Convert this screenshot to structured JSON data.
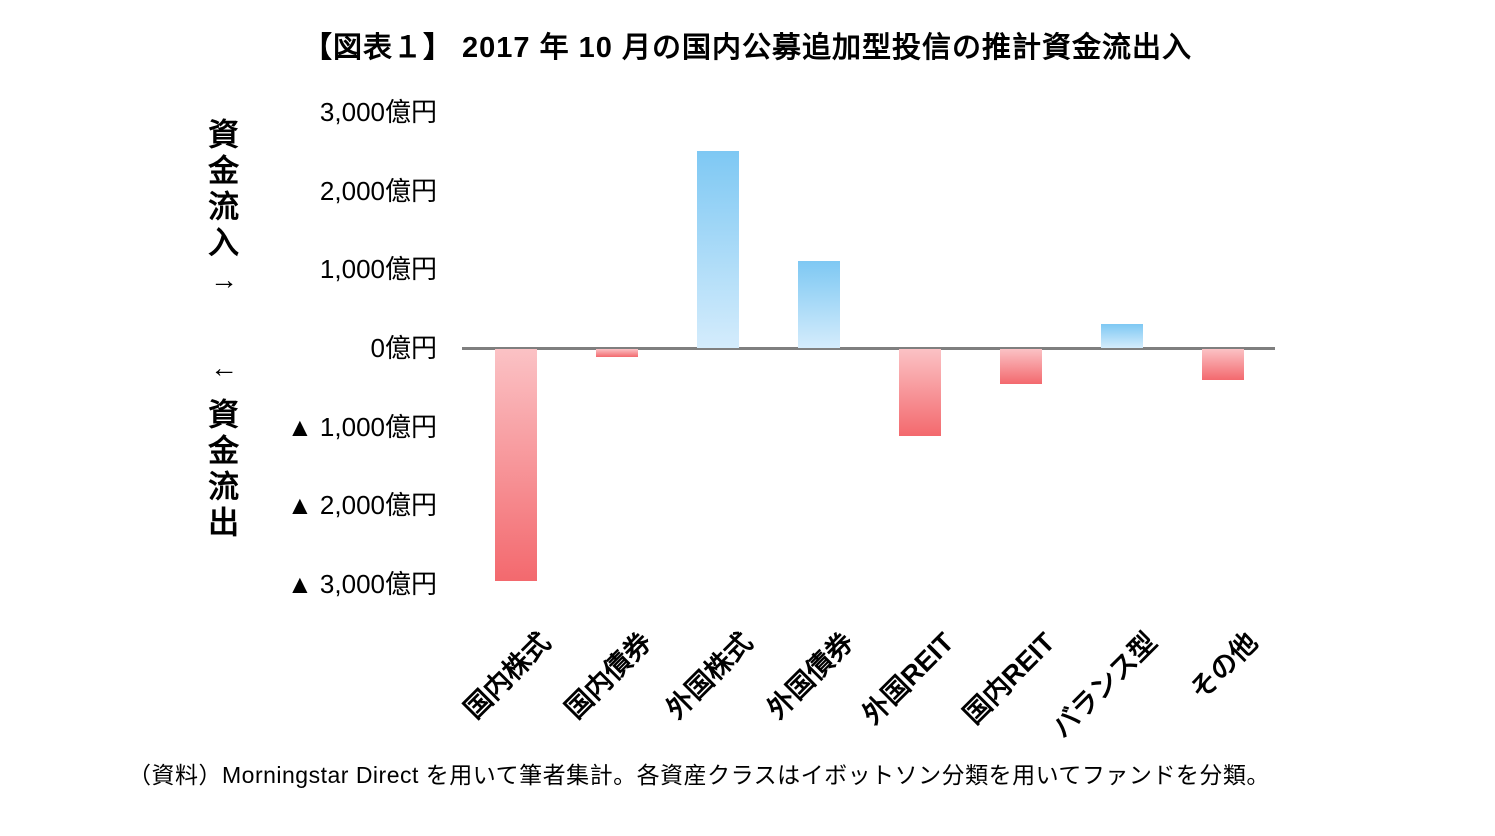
{
  "title": "【図表１】 2017 年 10 月の国内公募追加型投信の推計資金流出入",
  "axis": {
    "inflow_label": "資金流入",
    "outflow_label": "資金流出",
    "up_arrow": "→",
    "down_arrow": "←"
  },
  "footer": "（資料）Morningstar Direct を用いて筆者集計。各資産クラスはイボットソン分類を用いてファンドを分類。",
  "chart_data": {
    "type": "bar",
    "title": "【図表１】 2017 年 10 月の国内公募追加型投信の推計資金流出入",
    "categories": [
      "国内株式",
      "国内債券",
      "外国株式",
      "外国債券",
      "外国REIT",
      "国内REIT",
      "バランス型",
      "その他"
    ],
    "values": [
      -2950,
      -100,
      2500,
      1100,
      -1100,
      -450,
      300,
      -400
    ],
    "unit": "億円",
    "yticks": [
      3000,
      2000,
      1000,
      0,
      -1000,
      -2000,
      -3000
    ],
    "ytick_labels": [
      "3,000億円",
      "2,000億円",
      "1,000億円",
      "0億円",
      "▲ 1,000億円",
      "▲ 2,000億円",
      "▲ 3,000億円"
    ],
    "ylim": [
      -3000,
      3000
    ],
    "xlabel": "",
    "ylabel": "資金流入 / 資金流出",
    "grid": false,
    "legend": false,
    "colors": {
      "positive_top": "#7ec8f3",
      "positive_bottom": "#d4ecfc",
      "negative_top": "#fbc2c5",
      "negative_bottom": "#f3696e",
      "zero_line": "#7f7f7f"
    }
  }
}
